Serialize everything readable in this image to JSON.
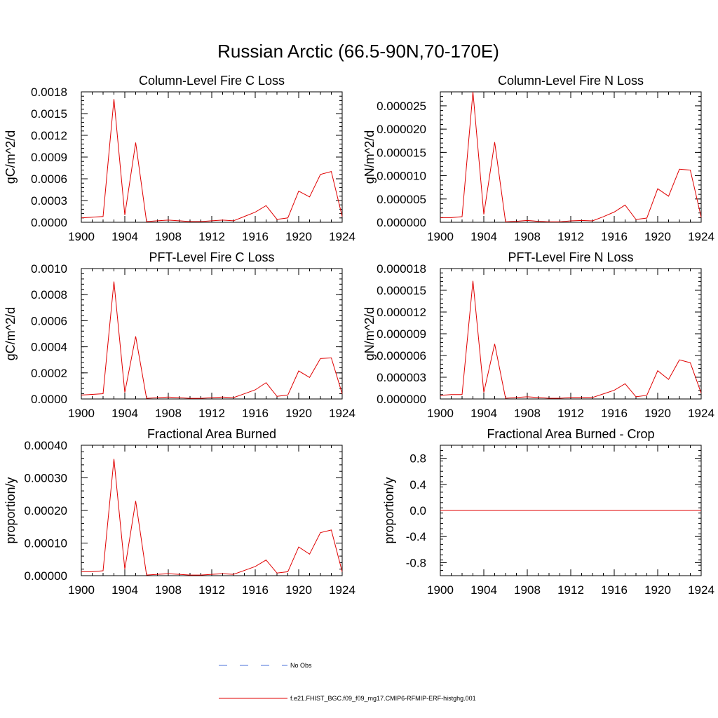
{
  "figure_title": "Russian Arctic (66.5-90N,70-170E)",
  "colors": {
    "model_line": "#e00000",
    "obs_line": "#4a6fd8",
    "axis": "#000000"
  },
  "legend": [
    {
      "label": "No Obs",
      "style": "dashed",
      "color": "#4a6fd8"
    },
    {
      "label": "f.e21.FHIST_BGC.f09_f09_mg17.CMIP6-RFMIP-ERF-histghg.001",
      "style": "solid",
      "color": "#e00000"
    }
  ],
  "chart_data": [
    {
      "type": "line",
      "title": "Column-Level Fire C Loss",
      "ylabel": "gC/m^2/d",
      "xlim": [
        1900,
        1924
      ],
      "x_ticks": [
        "1900",
        "1904",
        "1908",
        "1912",
        "1916",
        "1920",
        "1924"
      ],
      "ylim": [
        0,
        0.0018
      ],
      "y_ticks": [
        "0.0000",
        "0.0003",
        "0.0006",
        "0.0009",
        "0.0012",
        "0.0015",
        "0.0018"
      ],
      "series": [
        {
          "x": [
            1900,
            1901,
            1902,
            1903,
            1904,
            1905,
            1906,
            1907,
            1908,
            1909,
            1910,
            1911,
            1912,
            1913,
            1914,
            1915,
            1916,
            1917,
            1918,
            1919,
            1920,
            1921,
            1922,
            1923,
            1924
          ],
          "values": [
            6e-05,
            7e-05,
            8e-05,
            0.0017,
            0.0001,
            0.0011,
            1e-05,
            2e-05,
            3e-05,
            2e-05,
            1e-05,
            1e-05,
            2e-05,
            3e-05,
            2e-05,
            8e-05,
            0.00014,
            0.00023,
            4e-05,
            6e-05,
            0.00043,
            0.00035,
            0.00066,
            0.0007,
            8e-05
          ]
        }
      ]
    },
    {
      "type": "line",
      "title": "Column-Level Fire N Loss",
      "ylabel": "gN/m^2/d",
      "xlim": [
        1900,
        1924
      ],
      "x_ticks": [
        "1900",
        "1904",
        "1908",
        "1912",
        "1916",
        "1920",
        "1924"
      ],
      "ylim": [
        0,
        2.8e-05
      ],
      "y_ticks": [
        "0.000000",
        "0.000005",
        "0.000010",
        "0.000015",
        "0.000020",
        "0.000025"
      ],
      "series": [
        {
          "x": [
            1900,
            1901,
            1902,
            1903,
            1904,
            1905,
            1906,
            1907,
            1908,
            1909,
            1910,
            1911,
            1912,
            1913,
            1914,
            1915,
            1916,
            1917,
            1918,
            1919,
            1920,
            1921,
            1922,
            1923,
            1924
          ],
          "values": [
            1e-06,
            1e-06,
            1.2e-06,
            2.8e-05,
            1.7e-06,
            1.72e-05,
            1e-07,
            2e-07,
            4e-07,
            2e-07,
            1e-07,
            1e-07,
            3e-07,
            4e-07,
            3e-07,
            1.2e-06,
            2.2e-06,
            3.7e-06,
            6e-07,
            9e-07,
            7.2e-06,
            5.6e-06,
            1.14e-05,
            1.12e-05,
            1.1e-06
          ]
        }
      ]
    },
    {
      "type": "line",
      "title": "PFT-Level Fire C Loss",
      "ylabel": "gC/m^2/d",
      "xlim": [
        1900,
        1924
      ],
      "x_ticks": [
        "1900",
        "1904",
        "1908",
        "1912",
        "1916",
        "1920",
        "1924"
      ],
      "ylim": [
        0,
        0.001
      ],
      "y_ticks": [
        "0.0000",
        "0.0002",
        "0.0004",
        "0.0006",
        "0.0008",
        "0.0010"
      ],
      "series": [
        {
          "x": [
            1900,
            1901,
            1902,
            1903,
            1904,
            1905,
            1906,
            1907,
            1908,
            1909,
            1910,
            1911,
            1912,
            1913,
            1914,
            1915,
            1916,
            1917,
            1918,
            1919,
            1920,
            1921,
            1922,
            1923,
            1924
          ],
          "values": [
            3e-05,
            3.5e-05,
            4e-05,
            0.0009,
            5e-05,
            0.00048,
            5e-06,
            1e-05,
            1.5e-05,
            1e-05,
            5e-06,
            5e-06,
            1e-05,
            1.5e-05,
            1e-05,
            4e-05,
            7e-05,
            0.000125,
            2e-05,
            3e-05,
            0.000215,
            0.000165,
            0.00031,
            0.000315,
            4e-05
          ]
        }
      ]
    },
    {
      "type": "line",
      "title": "PFT-Level Fire N Loss",
      "ylabel": "gN/m^2/d",
      "xlim": [
        1900,
        1924
      ],
      "x_ticks": [
        "1900",
        "1904",
        "1908",
        "1912",
        "1916",
        "1920",
        "1924"
      ],
      "ylim": [
        0,
        1.8e-05
      ],
      "y_ticks": [
        "0.000000",
        "0.000003",
        "0.000006",
        "0.000009",
        "0.000012",
        "0.000015",
        "0.000018"
      ],
      "series": [
        {
          "x": [
            1900,
            1901,
            1902,
            1903,
            1904,
            1905,
            1906,
            1907,
            1908,
            1909,
            1910,
            1911,
            1912,
            1913,
            1914,
            1915,
            1916,
            1917,
            1918,
            1919,
            1920,
            1921,
            1922,
            1923,
            1924
          ],
          "values": [
            5e-07,
            6e-07,
            6e-07,
            1.63e-05,
            9e-07,
            7.6e-06,
            1e-07,
            2e-07,
            3e-07,
            2e-07,
            1e-07,
            1e-07,
            2e-07,
            2e-07,
            2e-07,
            7e-07,
            1.2e-06,
            2.1e-06,
            3e-07,
            5e-07,
            3.9e-06,
            2.7e-06,
            5.4e-06,
            5e-06,
            8e-07
          ]
        }
      ]
    },
    {
      "type": "line",
      "title": "Fractional Area Burned",
      "ylabel": "proportion/y",
      "xlim": [
        1900,
        1924
      ],
      "x_ticks": [
        "1900",
        "1904",
        "1908",
        "1912",
        "1916",
        "1920",
        "1924"
      ],
      "ylim": [
        0,
        0.0004
      ],
      "y_ticks": [
        "0.00000",
        "0.00010",
        "0.00020",
        "0.00030",
        "0.00040"
      ],
      "series": [
        {
          "x": [
            1900,
            1901,
            1902,
            1903,
            1904,
            1905,
            1906,
            1907,
            1908,
            1909,
            1910,
            1911,
            1912,
            1913,
            1914,
            1915,
            1916,
            1917,
            1918,
            1919,
            1920,
            1921,
            1922,
            1923,
            1924
          ],
          "values": [
            1.2e-05,
            1.2e-05,
            1.5e-05,
            0.000358,
            2e-05,
            0.000229,
            2e-06,
            4e-06,
            6e-06,
            4e-06,
            2e-06,
            2e-06,
            4e-06,
            6e-06,
            4e-06,
            1.6e-05,
            2.8e-05,
            4.8e-05,
            8e-06,
            1.2e-05,
            8.8e-05,
            6.6e-05,
            0.000132,
            0.00014,
            1.2e-05
          ]
        }
      ]
    },
    {
      "type": "line",
      "title": "Fractional Area Burned - Crop",
      "ylabel": "proportion/y",
      "xlim": [
        1900,
        1924
      ],
      "x_ticks": [
        "1900",
        "1904",
        "1908",
        "1912",
        "1916",
        "1920",
        "1924"
      ],
      "ylim": [
        -1,
        1
      ],
      "y_ticks": [
        "-0.8",
        "-0.4",
        "0.0",
        "0.4",
        "0.8"
      ],
      "series": [
        {
          "x": [
            1900,
            1924
          ],
          "values": [
            0,
            0
          ]
        }
      ]
    }
  ]
}
